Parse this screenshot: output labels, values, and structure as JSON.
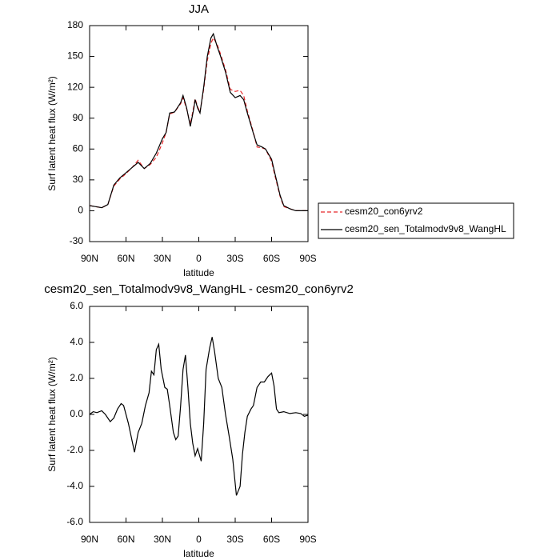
{
  "chart_data": [
    {
      "type": "line",
      "title": "JJA",
      "xlabel": "latitude",
      "ylabel": "Surf latent heat flux (W/m²)",
      "xlim": [
        90,
        -90
      ],
      "ylim": [
        -30,
        180
      ],
      "xticks": [
        {
          "value": 90,
          "label": "90N"
        },
        {
          "value": 60,
          "label": "60N"
        },
        {
          "value": 30,
          "label": "30N"
        },
        0,
        {
          "value": -30,
          "label": "30S"
        },
        {
          "value": -60,
          "label": "60S"
        },
        {
          "value": -90,
          "label": "90S"
        }
      ],
      "yticks": [
        -30,
        0,
        30,
        60,
        90,
        120,
        150,
        180
      ],
      "legend": "right",
      "x": [
        90,
        85,
        80,
        75,
        70,
        65,
        60,
        55,
        50,
        45,
        40,
        35,
        30,
        27,
        24,
        20,
        15,
        13,
        10,
        7,
        4,
        3,
        1,
        -1,
        -4,
        -7,
        -10,
        -12,
        -15,
        -18,
        -22,
        -26,
        -30,
        -34,
        -37,
        -40,
        -45,
        -48,
        -52,
        -55,
        -60,
        -63,
        -67,
        -70,
        -75,
        -80,
        -85,
        -90
      ],
      "series": [
        {
          "name": "cesm20_con6yrv2",
          "color": "#e8282a",
          "dash": true,
          "values": [
            5,
            4,
            3,
            6,
            24,
            31,
            36,
            42,
            49,
            41,
            45,
            52,
            66,
            76,
            94,
            96,
            104,
            110,
            99,
            84,
            102,
            109,
            101,
            96,
            118,
            146,
            163,
            168,
            162,
            152,
            137,
            118,
            116,
            117,
            112,
            97,
            76,
            62,
            61,
            60,
            48,
            33,
            14,
            4,
            2,
            0,
            0,
            0
          ]
        },
        {
          "name": "cesm20_sen_Totalmodv9v8_WangHL",
          "color": "#000000",
          "dash": false,
          "values": [
            5,
            4,
            3,
            6,
            25,
            32,
            37,
            42,
            47,
            41,
            46,
            56,
            70,
            76,
            95,
            96,
            105,
            112,
            100,
            82,
            100,
            108,
            100,
            95,
            120,
            150,
            168,
            172,
            160,
            150,
            135,
            115,
            110,
            112,
            108,
            95,
            75,
            64,
            62,
            60,
            50,
            35,
            15,
            5,
            2,
            0,
            0,
            0
          ]
        }
      ]
    },
    {
      "type": "line",
      "title": "cesm20_sen_Totalmodv9v8_WangHL - cesm20_con6yrv2",
      "xlabel": "latitude",
      "ylabel": "Surf latent heat flux (W/m²)",
      "xlim": [
        90,
        -90
      ],
      "ylim": [
        -6,
        6
      ],
      "xticks": [
        {
          "value": 90,
          "label": "90N"
        },
        {
          "value": 60,
          "label": "60N"
        },
        {
          "value": 30,
          "label": "30N"
        },
        0,
        {
          "value": -30,
          "label": "30S"
        },
        {
          "value": -60,
          "label": "60S"
        },
        {
          "value": -90,
          "label": "90S"
        }
      ],
      "yticks": [
        {
          "value": -6,
          "label": "-6.0"
        },
        {
          "value": -4,
          "label": "-4.0"
        },
        {
          "value": -2,
          "label": "-2.0"
        },
        {
          "value": 0,
          "label": "0.0"
        },
        {
          "value": 2,
          "label": "2.0"
        },
        {
          "value": 4,
          "label": "4.0"
        },
        {
          "value": 6,
          "label": "6.0"
        }
      ],
      "x": [
        90,
        87,
        84,
        80,
        77,
        73,
        70,
        67,
        64,
        62,
        58,
        53,
        50,
        47,
        44,
        41,
        39,
        37,
        35,
        33,
        31,
        28,
        26,
        24,
        21,
        19,
        17,
        15,
        13,
        11,
        9,
        7,
        5,
        3,
        1,
        -2,
        -4,
        -6,
        -9,
        -11,
        -13,
        -16,
        -19,
        -22,
        -25,
        -28,
        -31,
        -34,
        -36,
        -38,
        -40,
        -43,
        -45,
        -48,
        -51,
        -54,
        -57,
        -60,
        -62,
        -64,
        -66,
        -70,
        -75,
        -80,
        -84,
        -87,
        -90
      ],
      "series": [
        {
          "color": "#000000",
          "dash": false,
          "values": [
            0.0,
            0.15,
            0.1,
            0.2,
            0.0,
            -0.4,
            -0.2,
            0.3,
            0.6,
            0.5,
            -0.5,
            -2.1,
            -1.0,
            -0.5,
            0.5,
            1.2,
            2.4,
            2.2,
            3.6,
            3.9,
            2.5,
            1.5,
            1.4,
            0.5,
            -1.0,
            -1.4,
            -1.2,
            0.5,
            2.5,
            3.3,
            1.5,
            -0.5,
            -1.6,
            -2.3,
            -1.9,
            -2.6,
            -0.5,
            2.5,
            3.7,
            4.3,
            3.5,
            2.0,
            1.5,
            0.0,
            -1.2,
            -2.5,
            -4.5,
            -4.0,
            -2.2,
            -1.0,
            -0.1,
            0.3,
            0.5,
            1.5,
            1.8,
            1.8,
            2.1,
            2.3,
            1.6,
            0.3,
            0.1,
            0.15,
            0.05,
            0.1,
            0.05,
            -0.1,
            -0.05
          ]
        }
      ]
    }
  ]
}
